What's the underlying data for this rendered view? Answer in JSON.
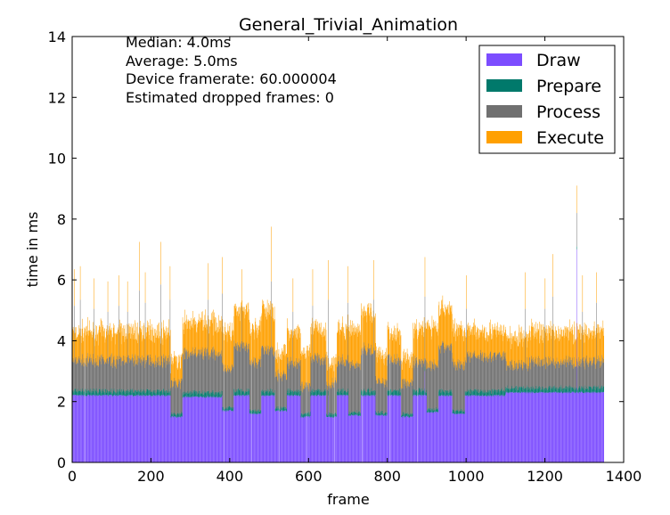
{
  "chart_data": {
    "type": "bar",
    "stacked": true,
    "title": "General_Trivial_Animation",
    "xlabel": "frame",
    "ylabel": "time in ms",
    "xlim": [
      0,
      1400
    ],
    "ylim": [
      0,
      14
    ],
    "xticks": [
      0,
      200,
      400,
      600,
      800,
      1000,
      1200,
      1400
    ],
    "yticks": [
      0,
      2,
      4,
      6,
      8,
      10,
      12,
      14
    ],
    "grid": false,
    "legend_placement": "top-right",
    "frame_count": 1350,
    "series": [
      {
        "name": "Draw",
        "key": "draw",
        "color": "#7c4dff"
      },
      {
        "name": "Prepare",
        "key": "prepare",
        "color": "#00796b"
      },
      {
        "name": "Process",
        "key": "process",
        "color": "#707070"
      },
      {
        "name": "Execute",
        "key": "execute",
        "color": "#ffa000"
      }
    ],
    "annotations": [
      "Median: 4.0ms",
      "Average: 5.0ms",
      "Device framerate: 60.000004",
      "Estimated dropped frames: 0"
    ],
    "segments": [
      {
        "from": 0,
        "to": 250,
        "draw": 2.2,
        "prepare": 0.15,
        "process": 1.0,
        "execute": 0.95
      },
      {
        "from": 250,
        "to": 280,
        "draw": 1.5,
        "prepare": 0.1,
        "process": 1.0,
        "execute": 0.7
      },
      {
        "from": 280,
        "to": 380,
        "draw": 2.15,
        "prepare": 0.15,
        "process": 1.3,
        "execute": 1.0
      },
      {
        "from": 380,
        "to": 410,
        "draw": 1.7,
        "prepare": 0.1,
        "process": 1.3,
        "execute": 1.2
      },
      {
        "from": 410,
        "to": 450,
        "draw": 2.2,
        "prepare": 0.15,
        "process": 1.45,
        "execute": 1.15
      },
      {
        "from": 450,
        "to": 480,
        "draw": 1.6,
        "prepare": 0.1,
        "process": 1.6,
        "execute": 1.1
      },
      {
        "from": 480,
        "to": 515,
        "draw": 2.2,
        "prepare": 0.15,
        "process": 1.35,
        "execute": 1.3
      },
      {
        "from": 515,
        "to": 545,
        "draw": 1.7,
        "prepare": 0.1,
        "process": 1.05,
        "execute": 0.75
      },
      {
        "from": 545,
        "to": 580,
        "draw": 2.2,
        "prepare": 0.15,
        "process": 0.95,
        "execute": 1.05
      },
      {
        "from": 580,
        "to": 605,
        "draw": 1.5,
        "prepare": 0.1,
        "process": 0.9,
        "execute": 1.1
      },
      {
        "from": 605,
        "to": 645,
        "draw": 2.2,
        "prepare": 0.15,
        "process": 1.05,
        "execute": 1.0
      },
      {
        "from": 645,
        "to": 672,
        "draw": 1.5,
        "prepare": 0.1,
        "process": 1.0,
        "execute": 0.75
      },
      {
        "from": 672,
        "to": 700,
        "draw": 2.2,
        "prepare": 0.15,
        "process": 0.95,
        "execute": 1.1
      },
      {
        "from": 700,
        "to": 733,
        "draw": 1.55,
        "prepare": 0.1,
        "process": 1.55,
        "execute": 1.2
      },
      {
        "from": 733,
        "to": 770,
        "draw": 2.2,
        "prepare": 0.15,
        "process": 1.35,
        "execute": 1.25
      },
      {
        "from": 770,
        "to": 800,
        "draw": 1.55,
        "prepare": 0.1,
        "process": 1.0,
        "execute": 0.9
      },
      {
        "from": 800,
        "to": 835,
        "draw": 2.2,
        "prepare": 0.15,
        "process": 1.05,
        "execute": 0.9
      },
      {
        "from": 835,
        "to": 865,
        "draw": 1.5,
        "prepare": 0.1,
        "process": 1.0,
        "execute": 0.8
      },
      {
        "from": 865,
        "to": 900,
        "draw": 2.2,
        "prepare": 0.15,
        "process": 0.95,
        "execute": 1.1
      },
      {
        "from": 900,
        "to": 930,
        "draw": 1.65,
        "prepare": 0.1,
        "process": 1.45,
        "execute": 1.25
      },
      {
        "from": 930,
        "to": 965,
        "draw": 2.2,
        "prepare": 0.15,
        "process": 1.45,
        "execute": 1.25
      },
      {
        "from": 965,
        "to": 997,
        "draw": 1.6,
        "prepare": 0.1,
        "process": 1.5,
        "execute": 1.2
      },
      {
        "from": 997,
        "to": 1100,
        "draw": 2.2,
        "prepare": 0.15,
        "process": 1.15,
        "execute": 0.8
      },
      {
        "from": 1100,
        "to": 1158,
        "draw": 2.3,
        "prepare": 0.15,
        "process": 0.75,
        "execute": 0.9
      },
      {
        "from": 1158,
        "to": 1350,
        "draw": 2.3,
        "prepare": 0.15,
        "process": 0.85,
        "execute": 1.0
      }
    ],
    "spikes": [
      {
        "frame": 5,
        "draw": 2.2,
        "prepare": 0.15,
        "process": 2.8,
        "execute": 1.2
      },
      {
        "frame": 20,
        "draw": 2.2,
        "prepare": 0.15,
        "process": 3.0,
        "execute": 1.1
      },
      {
        "frame": 55,
        "draw": 2.2,
        "prepare": 0.15,
        "process": 2.7,
        "execute": 1.0
      },
      {
        "frame": 90,
        "draw": 2.2,
        "prepare": 0.15,
        "process": 2.6,
        "execute": 1.0
      },
      {
        "frame": 118,
        "draw": 2.2,
        "prepare": 0.15,
        "process": 2.8,
        "execute": 1.0
      },
      {
        "frame": 140,
        "draw": 2.2,
        "prepare": 0.15,
        "process": 2.6,
        "execute": 1.0
      },
      {
        "frame": 170,
        "draw": 2.2,
        "prepare": 0.15,
        "process": 3.3,
        "execute": 1.6
      },
      {
        "frame": 185,
        "draw": 2.2,
        "prepare": 0.15,
        "process": 2.9,
        "execute": 1.0
      },
      {
        "frame": 225,
        "draw": 2.2,
        "prepare": 0.15,
        "process": 3.5,
        "execute": 1.4
      },
      {
        "frame": 248,
        "draw": 2.2,
        "prepare": 0.15,
        "process": 3.0,
        "execute": 1.1
      },
      {
        "frame": 345,
        "draw": 2.2,
        "prepare": 0.15,
        "process": 3.0,
        "execute": 1.2
      },
      {
        "frame": 380,
        "draw": 2.2,
        "prepare": 0.15,
        "process": 3.2,
        "execute": 1.2
      },
      {
        "frame": 430,
        "draw": 2.2,
        "prepare": 0.15,
        "process": 2.8,
        "execute": 1.2
      },
      {
        "frame": 505,
        "draw": 2.2,
        "prepare": 0.15,
        "process": 3.6,
        "execute": 1.8
      },
      {
        "frame": 560,
        "draw": 2.2,
        "prepare": 0.15,
        "process": 2.6,
        "execute": 1.1
      },
      {
        "frame": 610,
        "draw": 2.2,
        "prepare": 0.15,
        "process": 2.8,
        "execute": 1.2
      },
      {
        "frame": 650,
        "draw": 2.2,
        "prepare": 0.15,
        "process": 3.0,
        "execute": 1.3
      },
      {
        "frame": 700,
        "draw": 2.2,
        "prepare": 0.15,
        "process": 2.9,
        "execute": 1.2
      },
      {
        "frame": 765,
        "draw": 2.2,
        "prepare": 0.15,
        "process": 3.0,
        "execute": 1.3
      },
      {
        "frame": 895,
        "draw": 3.0,
        "prepare": 0.15,
        "process": 2.3,
        "execute": 1.3
      },
      {
        "frame": 1000,
        "draw": 2.2,
        "prepare": 0.15,
        "process": 2.7,
        "execute": 1.1
      },
      {
        "frame": 1150,
        "draw": 2.3,
        "prepare": 0.15,
        "process": 2.6,
        "execute": 1.2
      },
      {
        "frame": 1200,
        "draw": 2.3,
        "prepare": 0.15,
        "process": 2.6,
        "execute": 1.0
      },
      {
        "frame": 1220,
        "draw": 2.3,
        "prepare": 0.15,
        "process": 3.0,
        "execute": 1.4
      },
      {
        "frame": 1280,
        "draw": 7.0,
        "prepare": 0.1,
        "process": 1.1,
        "execute": 0.9
      },
      {
        "frame": 1295,
        "draw": 2.3,
        "prepare": 0.15,
        "process": 2.5,
        "execute": 1.2
      },
      {
        "frame": 1330,
        "draw": 2.3,
        "prepare": 0.15,
        "process": 2.8,
        "execute": 1.0
      }
    ],
    "empty_frames": [
      33,
      385,
      455,
      525,
      595,
      665,
      735,
      805,
      875
    ]
  }
}
